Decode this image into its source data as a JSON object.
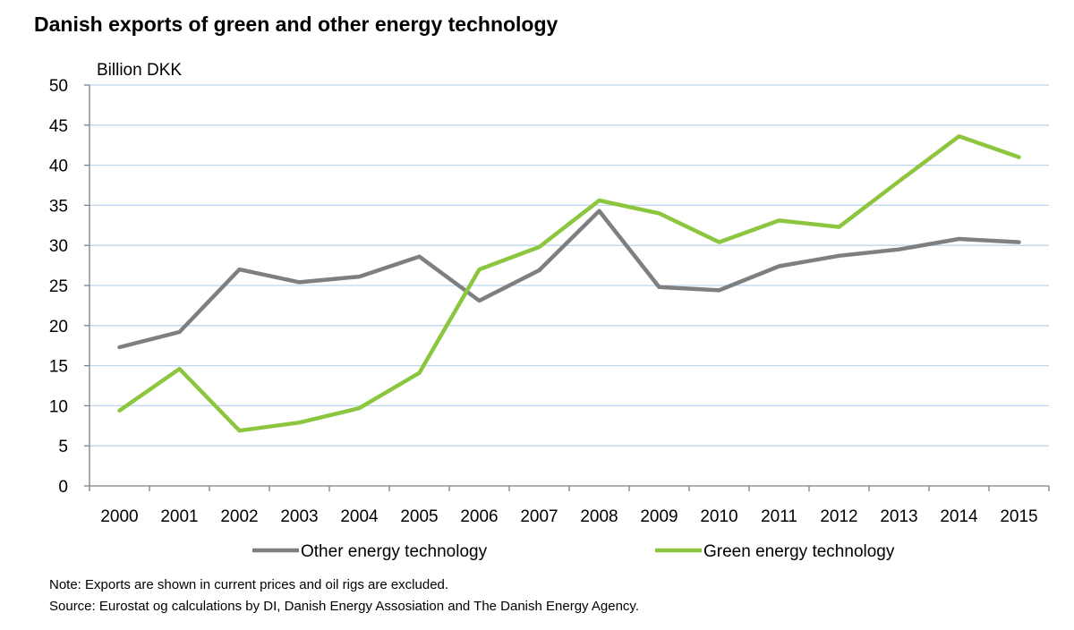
{
  "chart_data": {
    "type": "line",
    "title": "Danish exports of green and other energy technology",
    "ylabel": "Billion DKK",
    "xlabel": "",
    "categories": [
      "2000",
      "2001",
      "2002",
      "2003",
      "2004",
      "2005",
      "2006",
      "2007",
      "2008",
      "2009",
      "2010",
      "2011",
      "2012",
      "2013",
      "2014",
      "2015"
    ],
    "ylim": [
      0,
      50
    ],
    "yticks": [
      0,
      5,
      10,
      15,
      20,
      25,
      30,
      35,
      40,
      45,
      50
    ],
    "grid": true,
    "legend_position": "bottom",
    "series": [
      {
        "name": "Other energy technology",
        "color": "#7f7f7f",
        "values": [
          17.3,
          19.2,
          27.0,
          25.4,
          26.1,
          28.6,
          23.1,
          26.9,
          34.3,
          24.8,
          24.4,
          27.4,
          28.7,
          29.5,
          30.8,
          30.4
        ]
      },
      {
        "name": "Green energy technology",
        "color": "#8cc63f",
        "values": [
          9.4,
          14.6,
          6.9,
          7.9,
          9.7,
          14.1,
          27.0,
          29.8,
          35.6,
          34.0,
          30.4,
          33.1,
          32.3,
          38.0,
          43.6,
          41.0
        ]
      }
    ]
  },
  "notes": {
    "note": "Note: Exports are shown in current prices and oil rigs are excluded.",
    "source": "Source: Eurostat og calculations by DI, Danish Energy Assosiation and The Danish Energy Agency."
  },
  "colors": {
    "grid": "#bdd7ee",
    "axis": "#808080"
  }
}
